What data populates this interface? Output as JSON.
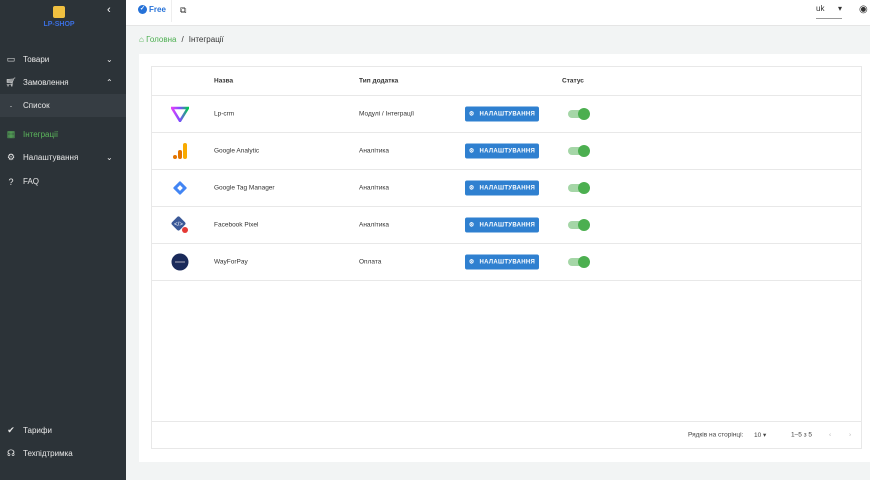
{
  "sidebar": {
    "logo_text": "LP-SHOP",
    "items": [
      {
        "label": "Товари",
        "icon": "archive-icon"
      },
      {
        "label": "Замовлення",
        "icon": "cart-icon"
      },
      {
        "label": "Список"
      },
      {
        "label": "Інтеграції",
        "icon": "grid-icon"
      },
      {
        "label": "Налаштування",
        "icon": "gear-icon"
      },
      {
        "label": "FAQ",
        "icon": "help-icon"
      },
      {
        "label": "Тарифи",
        "icon": "badge-check-icon"
      },
      {
        "label": "Техпідтримка",
        "icon": "headset-icon"
      }
    ]
  },
  "topbar": {
    "plan": "Free",
    "language": "uk"
  },
  "breadcrumb": {
    "home": "Головна",
    "current": "Інтеграції"
  },
  "table": {
    "headers": {
      "name": "Назва",
      "type": "Тип додатка",
      "status": "Статус"
    },
    "button_label": "НАЛАШТУВАННЯ",
    "rows": [
      {
        "name": "Lp-crm",
        "type": "Модулі / Інтеграції",
        "enabled": true
      },
      {
        "name": "Google Analytic",
        "type": "Аналітика",
        "enabled": true
      },
      {
        "name": "Google Tag Manager",
        "type": "Аналітика",
        "enabled": true
      },
      {
        "name": "Facebook Pixel",
        "type": "Аналітика",
        "enabled": true
      },
      {
        "name": "WayForPay",
        "type": "Оплата",
        "enabled": true
      }
    ]
  },
  "pagination": {
    "rows_per_page_label": "Рядків на сторінці:",
    "rows_per_page": "10",
    "range": "1–5 з 5"
  }
}
